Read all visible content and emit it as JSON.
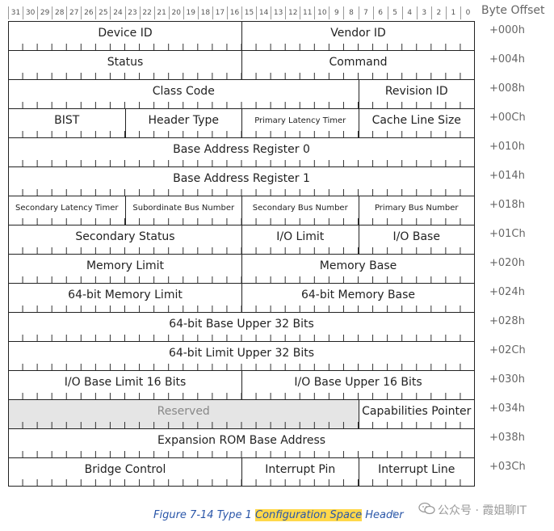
{
  "header": {
    "bit_numbers": [
      "31",
      "30",
      "29",
      "28",
      "27",
      "26",
      "25",
      "24",
      "23",
      "22",
      "21",
      "20",
      "19",
      "18",
      "17",
      "16",
      "15",
      "14",
      "13",
      "12",
      "11",
      "10",
      "9",
      "8",
      "7",
      "6",
      "5",
      "4",
      "3",
      "2",
      "1",
      "0"
    ],
    "byte_offset_label": "Byte Offset"
  },
  "registers": [
    {
      "offset": "+000h",
      "fields": [
        {
          "name": "Device ID",
          "bits": 16
        },
        {
          "name": "Vendor ID",
          "bits": 16
        }
      ]
    },
    {
      "offset": "+004h",
      "fields": [
        {
          "name": "Status",
          "bits": 16
        },
        {
          "name": "Command",
          "bits": 16
        }
      ]
    },
    {
      "offset": "+008h",
      "fields": [
        {
          "name": "Class Code",
          "bits": 24
        },
        {
          "name": "Revision ID",
          "bits": 8
        }
      ]
    },
    {
      "offset": "+00Ch",
      "fields": [
        {
          "name": "BIST",
          "bits": 8
        },
        {
          "name": "Header Type",
          "bits": 8
        },
        {
          "name": "Primary Latency Timer",
          "bits": 8,
          "small": true
        },
        {
          "name": "Cache Line Size",
          "bits": 8
        }
      ]
    },
    {
      "offset": "+010h",
      "fields": [
        {
          "name": "Base Address Register 0",
          "bits": 32
        }
      ]
    },
    {
      "offset": "+014h",
      "fields": [
        {
          "name": "Base Address Register 1",
          "bits": 32
        }
      ]
    },
    {
      "offset": "+018h",
      "fields": [
        {
          "name": "Secondary Latency Timer",
          "bits": 8,
          "small": true
        },
        {
          "name": "Subordinate Bus Number",
          "bits": 8,
          "small": true
        },
        {
          "name": "Secondary Bus Number",
          "bits": 8,
          "small": true
        },
        {
          "name": "Primary Bus Number",
          "bits": 8,
          "small": true
        }
      ]
    },
    {
      "offset": "+01Ch",
      "fields": [
        {
          "name": "Secondary Status",
          "bits": 16
        },
        {
          "name": "I/O Limit",
          "bits": 8
        },
        {
          "name": "I/O Base",
          "bits": 8
        }
      ]
    },
    {
      "offset": "+020h",
      "fields": [
        {
          "name": "Memory Limit",
          "bits": 16
        },
        {
          "name": "Memory Base",
          "bits": 16
        }
      ]
    },
    {
      "offset": "+024h",
      "fields": [
        {
          "name": "64-bit Memory Limit",
          "bits": 16
        },
        {
          "name": "64-bit Memory Base",
          "bits": 16
        }
      ]
    },
    {
      "offset": "+028h",
      "fields": [
        {
          "name": "64-bit Base Upper 32 Bits",
          "bits": 32
        }
      ]
    },
    {
      "offset": "+02Ch",
      "fields": [
        {
          "name": "64-bit Limit Upper 32 Bits",
          "bits": 32
        }
      ]
    },
    {
      "offset": "+030h",
      "fields": [
        {
          "name": "I/O Base Limit 16 Bits",
          "bits": 16
        },
        {
          "name": "I/O Base Upper 16 Bits",
          "bits": 16
        }
      ]
    },
    {
      "offset": "+034h",
      "fields": [
        {
          "name": "Reserved",
          "bits": 24,
          "reserved": true
        },
        {
          "name": "Capabilities Pointer",
          "bits": 8
        }
      ]
    },
    {
      "offset": "+038h",
      "fields": [
        {
          "name": "Expansion ROM Base Address",
          "bits": 32
        }
      ]
    },
    {
      "offset": "+03Ch",
      "fields": [
        {
          "name": "Bridge Control",
          "bits": 16
        },
        {
          "name": "Interrupt Pin",
          "bits": 8
        },
        {
          "name": "Interrupt Line",
          "bits": 8
        }
      ]
    }
  ],
  "caption": {
    "prefix": "Figure 7-14 Type 1 ",
    "highlight": "Configuration Space",
    "suffix": " Header",
    "tail": "§"
  },
  "watermark": {
    "text": "公众号 · 霞姐聊IT",
    "icon": "wechat-icon"
  },
  "colors": {
    "caption": "#2a56a8",
    "highlight": "#ffd84a",
    "reserved_fill": "#e5e5e5"
  }
}
